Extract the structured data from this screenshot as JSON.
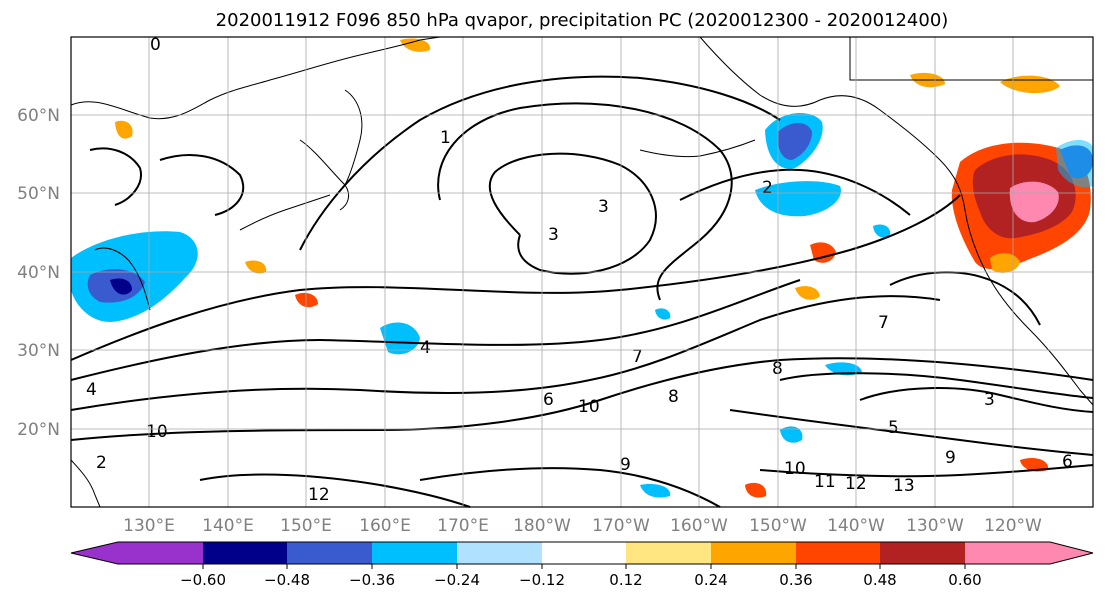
{
  "title": "2020011912 F096 850 hPa qvapor, precipitation PC (2020012300 - 2020012400)",
  "lat_labels": [
    "60°N",
    "50°N",
    "40°N",
    "30°N",
    "20°N"
  ],
  "lon_labels": [
    "130°E",
    "140°E",
    "150°E",
    "160°E",
    "170°E",
    "180°W",
    "170°W",
    "160°W",
    "150°W",
    "140°W",
    "130°W",
    "120°W"
  ],
  "colorbar": {
    "ticks": [
      "−0.60",
      "−0.48",
      "−0.36",
      "−0.24",
      "−0.12",
      "0.12",
      "0.24",
      "0.36",
      "0.48",
      "0.60"
    ],
    "colors": [
      "#9932cc",
      "#00008b",
      "#3a5bd0",
      "#00bfff",
      "#b0e2ff",
      "#ffffff",
      "#ffe680",
      "#ffa500",
      "#ff4500",
      "#b22222",
      "#ff88b0",
      "#ff88b0"
    ]
  },
  "contour_labels": [
    "0",
    "1",
    "2",
    "3",
    "3",
    "4",
    "5",
    "6",
    "7",
    "8",
    "9",
    "10",
    "11",
    "12",
    "13",
    "3",
    "7",
    "8",
    "9",
    "10",
    "12",
    "10",
    "6",
    "4",
    "2"
  ]
}
